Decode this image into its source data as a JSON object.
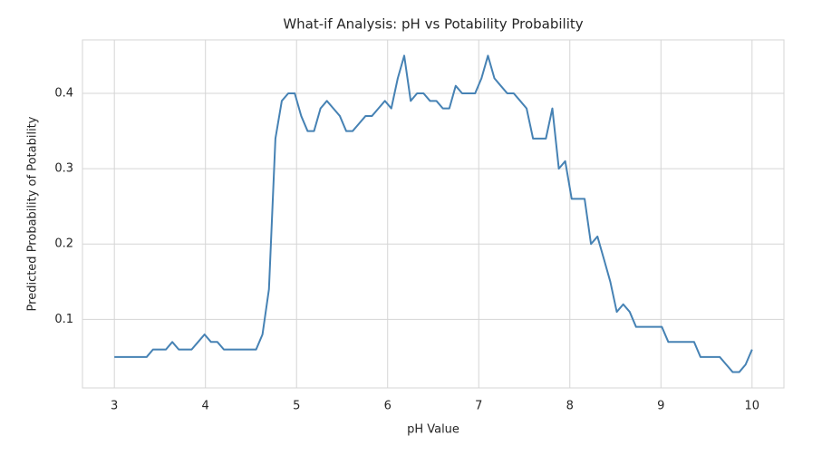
{
  "chart_data": {
    "type": "line",
    "title": "What-if Analysis: pH vs Potability Probability",
    "x_label": "pH Value",
    "y_label": "Predicted Probability of Potability",
    "x": [
      3.0,
      3.071,
      3.141,
      3.212,
      3.283,
      3.354,
      3.424,
      3.495,
      3.566,
      3.636,
      3.707,
      3.778,
      3.848,
      3.919,
      3.99,
      4.061,
      4.131,
      4.202,
      4.273,
      4.343,
      4.414,
      4.485,
      4.556,
      4.626,
      4.697,
      4.768,
      4.838,
      4.909,
      4.98,
      5.051,
      5.121,
      5.192,
      5.263,
      5.333,
      5.404,
      5.475,
      5.545,
      5.616,
      5.687,
      5.758,
      5.828,
      5.899,
      5.97,
      6.04,
      6.111,
      6.182,
      6.253,
      6.323,
      6.394,
      6.465,
      6.535,
      6.606,
      6.677,
      6.747,
      6.818,
      6.889,
      6.96,
      7.03,
      7.101,
      7.172,
      7.242,
      7.313,
      7.384,
      7.455,
      7.525,
      7.596,
      7.667,
      7.737,
      7.808,
      7.879,
      7.949,
      8.02,
      8.091,
      8.162,
      8.232,
      8.303,
      8.374,
      8.444,
      8.515,
      8.586,
      8.657,
      8.727,
      8.798,
      8.869,
      8.939,
      9.01,
      9.081,
      9.152,
      9.222,
      9.293,
      9.364,
      9.434,
      9.505,
      9.576,
      9.646,
      9.717,
      9.788,
      9.859,
      9.929,
      10.0
    ],
    "series": [
      {
        "color": "#4682b4",
        "values": [
          0.05,
          0.05,
          0.05,
          0.05,
          0.05,
          0.05,
          0.06,
          0.06,
          0.06,
          0.07,
          0.06,
          0.06,
          0.06,
          0.07,
          0.08,
          0.07,
          0.07,
          0.06,
          0.06,
          0.06,
          0.06,
          0.06,
          0.06,
          0.08,
          0.14,
          0.34,
          0.39,
          0.4,
          0.4,
          0.37,
          0.35,
          0.35,
          0.38,
          0.39,
          0.38,
          0.37,
          0.35,
          0.35,
          0.36,
          0.37,
          0.37,
          0.38,
          0.39,
          0.38,
          0.42,
          0.45,
          0.39,
          0.4,
          0.4,
          0.39,
          0.39,
          0.38,
          0.38,
          0.41,
          0.4,
          0.4,
          0.4,
          0.42,
          0.45,
          0.42,
          0.41,
          0.4,
          0.4,
          0.39,
          0.38,
          0.34,
          0.34,
          0.34,
          0.38,
          0.3,
          0.31,
          0.26,
          0.26,
          0.26,
          0.2,
          0.21,
          0.18,
          0.15,
          0.11,
          0.12,
          0.11,
          0.09,
          0.09,
          0.09,
          0.09,
          0.09,
          0.07,
          0.07,
          0.07,
          0.07,
          0.07,
          0.05,
          0.05,
          0.05,
          0.05,
          0.04,
          0.03,
          0.03,
          0.04,
          0.06
        ]
      }
    ],
    "xlim": [
      2.65,
      10.35
    ],
    "ylim": [
      0.009,
      0.471
    ],
    "xticks": [
      3,
      4,
      5,
      6,
      7,
      8,
      9,
      10
    ],
    "yticks": [
      0.1,
      0.2,
      0.3,
      0.4
    ],
    "grid": true
  }
}
